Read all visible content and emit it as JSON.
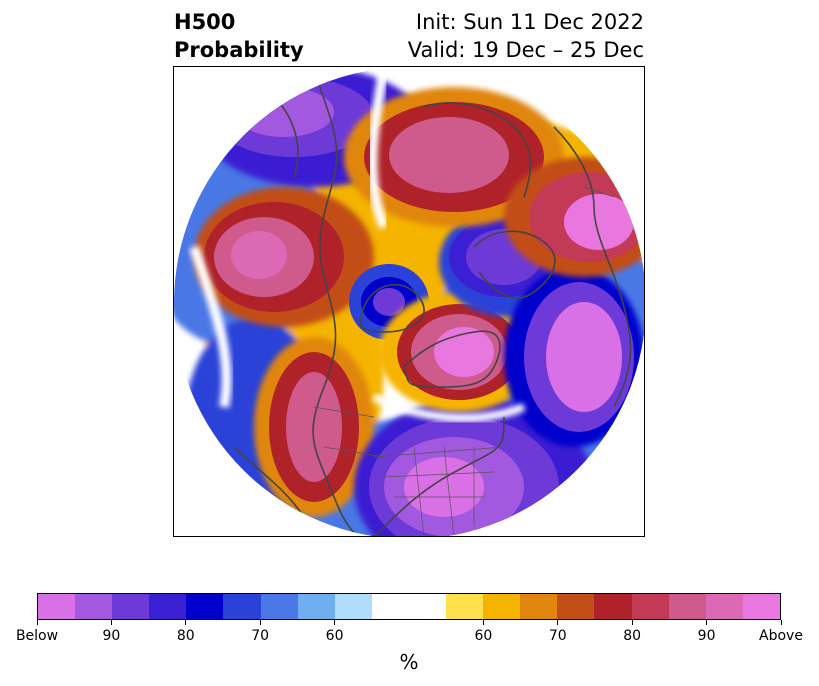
{
  "title": {
    "left_line1": "H500",
    "left_line2": "Probability",
    "right_line1": "Init: Sun 11 Dec 2022",
    "right_line2": "Valid: 19 Dec – 25 Dec"
  },
  "colorbar": {
    "unit": "%",
    "colors": [
      "#d970e6",
      "#a259e0",
      "#6e3ad7",
      "#3b1fd2",
      "#0000cc",
      "#2a42d8",
      "#4a78e6",
      "#70aef2",
      "#b0ddfb",
      "#ffffff",
      "#ffe14d",
      "#f5b400",
      "#e0860f",
      "#c24e18",
      "#b0222a",
      "#c23a55",
      "#cf5a8c",
      "#db69b4",
      "#e878e0"
    ],
    "tick_labels": [
      "Below",
      "90",
      "80",
      "70",
      "60",
      "60",
      "70",
      "80",
      "90",
      "Above"
    ]
  },
  "map": {
    "projection": "north polar stereographic",
    "anomaly_regions": [
      {
        "name": "alaska-below-low",
        "category": "below",
        "color": "#6e3ad7"
      },
      {
        "name": "north-pacific-above-high",
        "category": "above",
        "color": "#cf5a8c"
      },
      {
        "name": "west-us-above-ridge",
        "category": "above",
        "color": "#c23a55"
      },
      {
        "name": "eastern-us-below-trough",
        "category": "below",
        "color": "#a259e0"
      },
      {
        "name": "hudson-bay-below",
        "category": "below",
        "color": "#3b1fd2"
      },
      {
        "name": "greenland-above-block",
        "category": "above",
        "color": "#db69b4"
      },
      {
        "name": "siberia-below-low",
        "category": "below",
        "color": "#6e3ad7"
      },
      {
        "name": "north-atlantic-below",
        "category": "below",
        "color": "#a259e0"
      },
      {
        "name": "scandinavia-above-high",
        "category": "above",
        "color": "#cf5a8c"
      },
      {
        "name": "central-asia-above",
        "category": "above",
        "color": "#c23a55"
      }
    ]
  }
}
